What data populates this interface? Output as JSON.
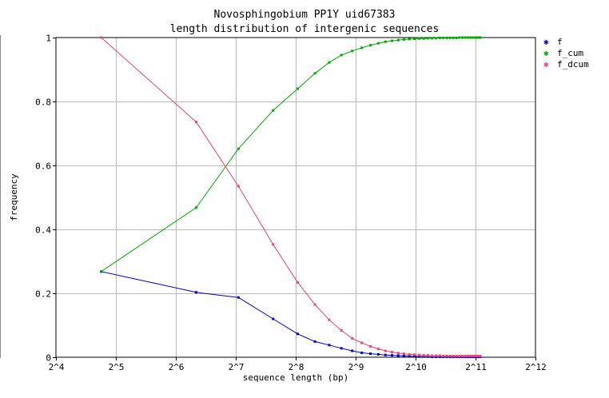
{
  "chart_data": {
    "type": "line",
    "title": "Novosphingobium PP1Y uid67383",
    "subtitle": "length distribution of intergenic sequences",
    "xlabel": "sequence length (bp)",
    "ylabel": "frequency",
    "x_scale": "log2",
    "xlim": [
      16,
      4096
    ],
    "ylim": [
      0,
      1
    ],
    "x_ticks": [
      16,
      32,
      64,
      128,
      256,
      512,
      1024,
      2048,
      4096
    ],
    "x_tick_labels": [
      "2^4",
      "2^5",
      "2^6",
      "2^7",
      "2^8",
      "2^9",
      "2^10",
      "2^11",
      "2^12"
    ],
    "y_ticks": [
      0,
      0.2,
      0.4,
      0.6,
      0.8,
      1
    ],
    "y_tick_labels": [
      "0",
      "0.2",
      "0.4",
      "0.6",
      "0.8",
      "1"
    ],
    "grid": true,
    "legend_position": "top-right",
    "x": [
      27,
      81,
      132,
      197,
      262,
      320,
      377,
      434,
      492,
      550,
      608,
      665,
      723,
      780,
      838,
      895,
      953,
      1010,
      1068,
      1125,
      1183,
      1241,
      1298,
      1356,
      1413,
      1471,
      1528,
      1586,
      1643,
      1701,
      1759,
      1816,
      1874,
      1931,
      1989,
      2046,
      2104,
      2161
    ],
    "series": [
      {
        "name": "f",
        "color": "#0000cc",
        "values": [
          0.268,
          0.203,
          0.187,
          0.12,
          0.073,
          0.049,
          0.038,
          0.028,
          0.02,
          0.014,
          0.011,
          0.009,
          0.007,
          0.006,
          0.005,
          0.004,
          0.003,
          0.003,
          0.002,
          0.002,
          0.002,
          0.001,
          0.001,
          0.001,
          0.001,
          0.001,
          0.001,
          0.001,
          0.001,
          0.001,
          0.001,
          0.001,
          0.001,
          0.001,
          0.001,
          0.001,
          0.001,
          0.001
        ]
      },
      {
        "name": "f_cum",
        "color": "#00aa00",
        "values": [
          0.268,
          0.468,
          0.652,
          0.772,
          0.84,
          0.888,
          0.922,
          0.945,
          0.958,
          0.968,
          0.976,
          0.982,
          0.987,
          0.99,
          0.992,
          0.994,
          0.995,
          0.996,
          0.997,
          0.997,
          0.998,
          0.998,
          0.998,
          0.999,
          0.999,
          0.999,
          0.999,
          0.999,
          0.999,
          1.0,
          1.0,
          1.0,
          1.0,
          1.0,
          1.0,
          1.0,
          1.0,
          1.0
        ]
      },
      {
        "name": "f_dcum",
        "color": "#ee4477",
        "values": [
          1.0,
          0.736,
          0.535,
          0.353,
          0.234,
          0.165,
          0.117,
          0.084,
          0.059,
          0.045,
          0.034,
          0.026,
          0.02,
          0.016,
          0.013,
          0.011,
          0.009,
          0.008,
          0.007,
          0.006,
          0.006,
          0.005,
          0.005,
          0.005,
          0.004,
          0.004,
          0.004,
          0.004,
          0.004,
          0.004,
          0.004,
          0.004,
          0.004,
          0.004,
          0.004,
          0.004,
          0.004,
          0.004
        ]
      }
    ]
  }
}
